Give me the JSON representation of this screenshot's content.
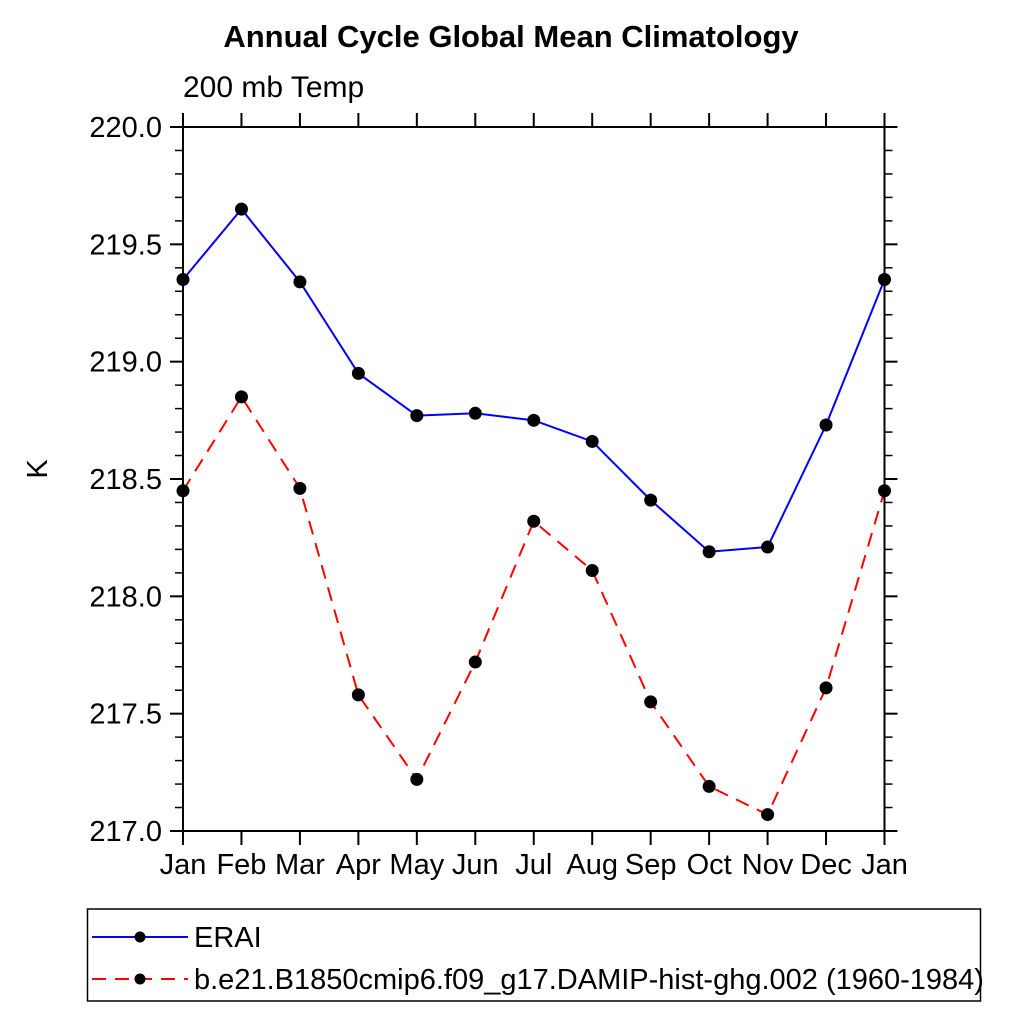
{
  "title": "Annual Cycle Global Mean Climatology",
  "subtitle": "200 mb Temp",
  "colors": {
    "background": "#ffffff",
    "axis": "#000000",
    "marker": "#000000",
    "erai_line": "#0000ff",
    "model_line": "#ff0000"
  },
  "chart_data": {
    "type": "line",
    "title": "Annual Cycle Global Mean Climatology",
    "subtitle": "200 mb Temp",
    "xlabel": "",
    "ylabel": "K",
    "x_tick_labels": [
      "Jan",
      "Feb",
      "Mar",
      "Apr",
      "May",
      "Jun",
      "Jul",
      "Aug",
      "Sep",
      "Oct",
      "Nov",
      "Dec",
      "Jan"
    ],
    "y_ticks": [
      217.0,
      217.5,
      218.0,
      218.5,
      219.0,
      219.5,
      220.0
    ],
    "y_tick_labels": [
      "217.0",
      "217.5",
      "218.0",
      "218.5",
      "219.0",
      "219.5",
      "220.0"
    ],
    "ylim": [
      217.0,
      220.0
    ],
    "y_minor_step": 0.1,
    "grid": false,
    "legend_position": "bottom-left-box",
    "series": [
      {
        "name": "ERAI",
        "color": "#0000ff",
        "line_style": "solid",
        "marker": "filled-circle",
        "marker_color": "#000000",
        "values": [
          219.35,
          219.65,
          219.34,
          218.95,
          218.77,
          218.78,
          218.75,
          218.66,
          218.41,
          218.19,
          218.21,
          218.73,
          219.35
        ]
      },
      {
        "name": "b.e21.B1850cmip6.f09_g17.DAMIP-hist-ghg.002 (1960-1984)",
        "color": "#ff0000",
        "line_style": "dashed",
        "marker": "filled-circle",
        "marker_color": "#000000",
        "values": [
          218.45,
          218.85,
          218.46,
          217.58,
          217.22,
          217.72,
          218.32,
          218.11,
          217.55,
          217.19,
          217.07,
          217.61,
          218.45
        ]
      }
    ]
  }
}
